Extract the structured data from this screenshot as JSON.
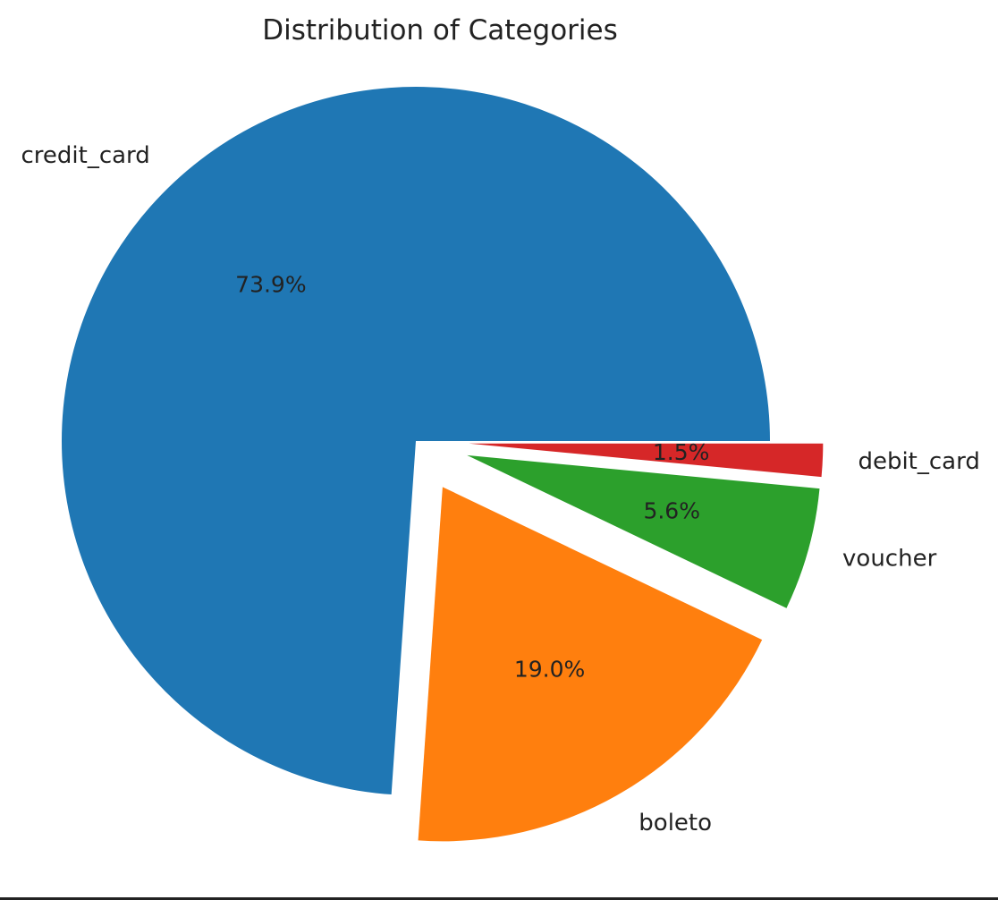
{
  "chart_data": {
    "type": "pie",
    "title": "Distribution of Categories",
    "slices": [
      {
        "label": "credit_card",
        "value": 73.9,
        "pct_label": "73.9%",
        "color": "#1f77b4",
        "exploded": false
      },
      {
        "label": "boleto",
        "value": 19.0,
        "pct_label": "19.0%",
        "color": "#ff7f0e",
        "exploded": true
      },
      {
        "label": "voucher",
        "value": 5.6,
        "pct_label": "5.6%",
        "color": "#2ca02c",
        "exploded": true
      },
      {
        "label": "debit_card",
        "value": 1.5,
        "pct_label": "1.5%",
        "color": "#d62728",
        "exploded": true
      }
    ],
    "start_angle": "0 degrees (3 o'clock)",
    "direction": "counterclockwise"
  }
}
